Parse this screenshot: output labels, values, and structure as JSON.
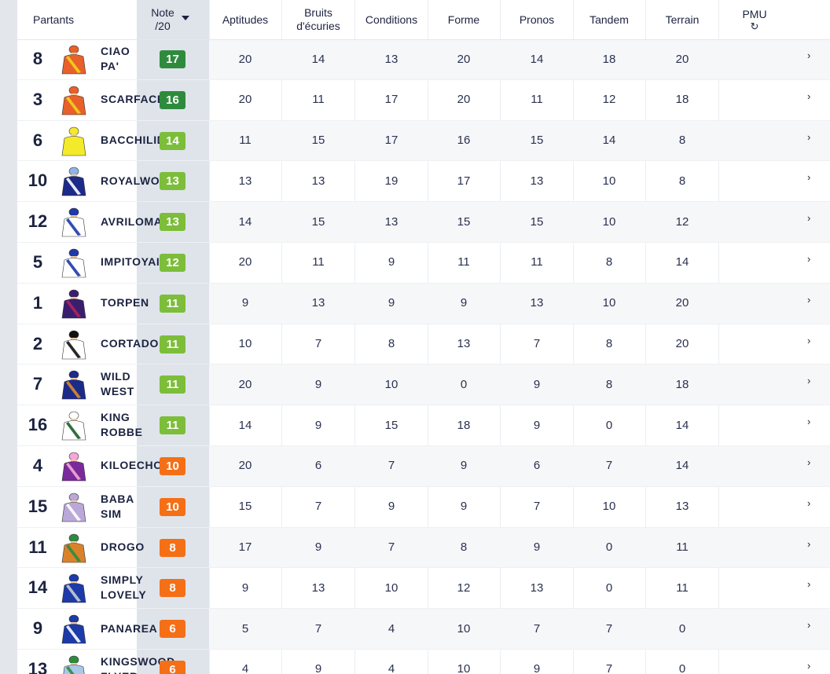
{
  "colors": {
    "green_dark": "#2e8b3d",
    "green_light": "#7cbd3a",
    "orange": "#f56f16"
  },
  "header": {
    "partants": "Partants",
    "note_line1": "Note",
    "note_line2": "/20",
    "aptitudes": "Aptitudes",
    "bruits_line1": "Bruits",
    "bruits_line2": "d'écuries",
    "conditions": "Conditions",
    "forme": "Forme",
    "pronos": "Pronos",
    "tandem": "Tandem",
    "terrain": "Terrain",
    "pmu": "PMU",
    "pmu_icon": "refresh-icon",
    "sort_icon": "caret-down-icon"
  },
  "rows": [
    {
      "num": "8",
      "name": "CIAO\nPA'",
      "note": "17",
      "level": "dark",
      "silk": "orange-yellow",
      "aptitudes": "20",
      "bruits": "14",
      "conditions": "13",
      "forme": "20",
      "pronos": "14",
      "tandem": "18",
      "terrain": "20"
    },
    {
      "num": "3",
      "name": "SCARFACE",
      "note": "16",
      "level": "dark",
      "silk": "orange-yellow",
      "aptitudes": "20",
      "bruits": "11",
      "conditions": "17",
      "forme": "20",
      "pronos": "11",
      "tandem": "12",
      "terrain": "18"
    },
    {
      "num": "6",
      "name": "BACCHILID",
      "note": "14",
      "level": "light",
      "silk": "yellow",
      "aptitudes": "11",
      "bruits": "15",
      "conditions": "17",
      "forme": "16",
      "pronos": "15",
      "tandem": "14",
      "terrain": "8"
    },
    {
      "num": "10",
      "name": "ROYALWO",
      "note": "13",
      "level": "light",
      "silk": "navy-pattern",
      "aptitudes": "13",
      "bruits": "13",
      "conditions": "19",
      "forme": "17",
      "pronos": "13",
      "tandem": "10",
      "terrain": "8"
    },
    {
      "num": "12",
      "name": "AVRILOMA R",
      "note": "13",
      "level": "light",
      "silk": "white-blue",
      "aptitudes": "14",
      "bruits": "15",
      "conditions": "13",
      "forme": "15",
      "pronos": "15",
      "tandem": "10",
      "terrain": "12"
    },
    {
      "num": "5",
      "name": "IMPITOYAI",
      "note": "12",
      "level": "light",
      "silk": "white-blue",
      "aptitudes": "20",
      "bruits": "11",
      "conditions": "9",
      "forme": "11",
      "pronos": "11",
      "tandem": "8",
      "terrain": "14"
    },
    {
      "num": "1",
      "name": "TORPEN",
      "note": "11",
      "level": "light",
      "silk": "purple",
      "aptitudes": "9",
      "bruits": "13",
      "conditions": "9",
      "forme": "9",
      "pronos": "13",
      "tandem": "10",
      "terrain": "20"
    },
    {
      "num": "2",
      "name": "CORTADO",
      "note": "11",
      "level": "light",
      "silk": "white-black",
      "aptitudes": "10",
      "bruits": "7",
      "conditions": "8",
      "forme": "13",
      "pronos": "7",
      "tandem": "8",
      "terrain": "20"
    },
    {
      "num": "7",
      "name": "WILD\nWEST",
      "note": "11",
      "level": "light",
      "silk": "navy",
      "aptitudes": "20",
      "bruits": "9",
      "conditions": "10",
      "forme": "0",
      "pronos": "9",
      "tandem": "8",
      "terrain": "18"
    },
    {
      "num": "16",
      "name": "KING\nROBBE",
      "note": "11",
      "level": "light",
      "silk": "white-green",
      "aptitudes": "14",
      "bruits": "9",
      "conditions": "15",
      "forme": "18",
      "pronos": "9",
      "tandem": "0",
      "terrain": "14"
    },
    {
      "num": "4",
      "name": "KILOECHO",
      "note": "10",
      "level": "orange",
      "silk": "purple-pink",
      "aptitudes": "20",
      "bruits": "6",
      "conditions": "7",
      "forme": "9",
      "pronos": "6",
      "tandem": "7",
      "terrain": "14"
    },
    {
      "num": "15",
      "name": "BABA\nSIM",
      "note": "10",
      "level": "orange",
      "silk": "lilac",
      "aptitudes": "15",
      "bruits": "7",
      "conditions": "9",
      "forme": "9",
      "pronos": "7",
      "tandem": "10",
      "terrain": "13"
    },
    {
      "num": "11",
      "name": "DROGO",
      "note": "8",
      "level": "orange",
      "silk": "orange-green",
      "aptitudes": "17",
      "bruits": "9",
      "conditions": "7",
      "forme": "8",
      "pronos": "9",
      "tandem": "0",
      "terrain": "11"
    },
    {
      "num": "14",
      "name": "SIMPLY\nLOVELY",
      "note": "8",
      "level": "orange",
      "silk": "blue-grey",
      "aptitudes": "9",
      "bruits": "13",
      "conditions": "10",
      "forme": "12",
      "pronos": "13",
      "tandem": "0",
      "terrain": "11"
    },
    {
      "num": "9",
      "name": "PANAREA",
      "note": "6",
      "level": "orange",
      "silk": "blue",
      "aptitudes": "5",
      "bruits": "7",
      "conditions": "4",
      "forme": "10",
      "pronos": "7",
      "tandem": "7",
      "terrain": "0"
    },
    {
      "num": "13",
      "name": "KINGSWOOD\nFLYER",
      "note": "6",
      "level": "orange",
      "silk": "lightblue-green",
      "aptitudes": "4",
      "bruits": "9",
      "conditions": "4",
      "forme": "10",
      "pronos": "9",
      "tandem": "7",
      "terrain": "0"
    }
  ]
}
